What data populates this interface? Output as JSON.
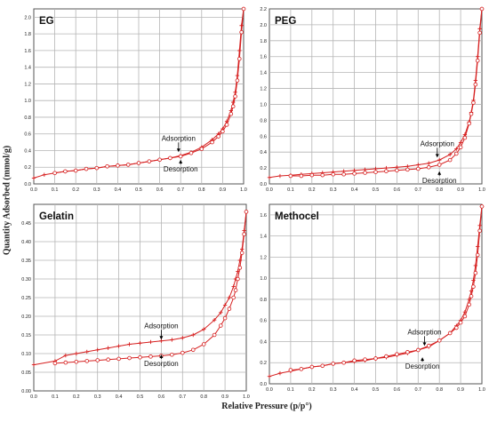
{
  "figure": {
    "ylabel": "Quantity Adsorbed (mmol/g)",
    "xlabel": "Relative Pressure (p/p°)"
  },
  "colors": {
    "line": "#d62020",
    "grid": "#b5b5b5",
    "text": "#222222"
  },
  "chart_data": [
    {
      "type": "line",
      "title": "EG",
      "xlim": [
        0,
        1.0
      ],
      "ylim": [
        0,
        2.1
      ],
      "xticks": [
        "0.0",
        "0.1",
        "0.2",
        "0.3",
        "0.4",
        "0.5",
        "0.6",
        "0.7",
        "0.8",
        "0.9",
        "1.0"
      ],
      "yticks": [
        "0.0",
        "0.2",
        "0.4",
        "0.6",
        "0.8",
        "1.0",
        "1.2",
        "1.4",
        "1.6",
        "1.8",
        "2.0"
      ],
      "annotations": [
        {
          "text": "Adsorption",
          "x": 0.69,
          "y": 0.37
        },
        {
          "text": "Desorption",
          "x": 0.7,
          "y": 0.3
        }
      ],
      "series": [
        {
          "name": "Adsorption",
          "x": [
            0.0,
            0.05,
            0.1,
            0.15,
            0.2,
            0.25,
            0.3,
            0.35,
            0.4,
            0.45,
            0.5,
            0.55,
            0.6,
            0.65,
            0.7,
            0.75,
            0.8,
            0.85,
            0.88,
            0.9,
            0.92,
            0.94,
            0.95,
            0.96,
            0.97,
            0.98,
            0.99,
            1.0
          ],
          "y": [
            0.07,
            0.11,
            0.13,
            0.15,
            0.16,
            0.18,
            0.19,
            0.21,
            0.22,
            0.23,
            0.25,
            0.27,
            0.29,
            0.31,
            0.34,
            0.38,
            0.44,
            0.53,
            0.6,
            0.66,
            0.75,
            0.88,
            0.98,
            1.1,
            1.3,
            1.6,
            1.9,
            2.1
          ]
        },
        {
          "name": "Desorption",
          "x": [
            1.0,
            0.99,
            0.98,
            0.97,
            0.96,
            0.95,
            0.94,
            0.92,
            0.9,
            0.88,
            0.85,
            0.8,
            0.75,
            0.7,
            0.65,
            0.6,
            0.55,
            0.5,
            0.45,
            0.4,
            0.35,
            0.3,
            0.25,
            0.2,
            0.15,
            0.1
          ],
          "y": [
            2.1,
            1.82,
            1.5,
            1.24,
            1.05,
            0.93,
            0.84,
            0.71,
            0.63,
            0.57,
            0.5,
            0.42,
            0.37,
            0.33,
            0.31,
            0.29,
            0.27,
            0.25,
            0.23,
            0.22,
            0.21,
            0.19,
            0.18,
            0.16,
            0.15,
            0.13
          ]
        }
      ]
    },
    {
      "type": "line",
      "title": "PEG",
      "xlim": [
        0,
        1.0
      ],
      "ylim": [
        0,
        2.2
      ],
      "xticks": [
        "0.0",
        "0.1",
        "0.2",
        "0.3",
        "0.4",
        "0.5",
        "0.6",
        "0.7",
        "0.8",
        "0.9",
        "1.0"
      ],
      "yticks": [
        "0.0",
        "0.2",
        "0.4",
        "0.6",
        "0.8",
        "1.0",
        "1.2",
        "1.4",
        "1.6",
        "1.8",
        "2.0",
        "2.2"
      ],
      "annotations": [
        {
          "text": "Adsorption",
          "x": 0.79,
          "y": 0.32
        },
        {
          "text": "Desorption",
          "x": 0.8,
          "y": 0.17
        }
      ],
      "series": [
        {
          "name": "Adsorption",
          "x": [
            0.0,
            0.05,
            0.1,
            0.15,
            0.2,
            0.25,
            0.3,
            0.35,
            0.4,
            0.45,
            0.5,
            0.55,
            0.6,
            0.65,
            0.7,
            0.75,
            0.8,
            0.85,
            0.88,
            0.9,
            0.92,
            0.94,
            0.95,
            0.96,
            0.97,
            0.98,
            0.99,
            1.0
          ],
          "y": [
            0.08,
            0.1,
            0.11,
            0.12,
            0.13,
            0.14,
            0.15,
            0.16,
            0.17,
            0.18,
            0.19,
            0.2,
            0.21,
            0.22,
            0.24,
            0.26,
            0.3,
            0.37,
            0.44,
            0.52,
            0.62,
            0.78,
            0.9,
            1.05,
            1.3,
            1.6,
            1.95,
            2.2
          ]
        },
        {
          "name": "Desorption",
          "x": [
            1.0,
            0.99,
            0.98,
            0.97,
            0.96,
            0.95,
            0.94,
            0.92,
            0.9,
            0.88,
            0.85,
            0.8,
            0.75,
            0.7,
            0.65,
            0.6,
            0.55,
            0.5,
            0.45,
            0.4,
            0.35,
            0.3,
            0.25,
            0.2,
            0.15,
            0.1
          ],
          "y": [
            2.2,
            1.9,
            1.55,
            1.25,
            1.02,
            0.88,
            0.76,
            0.58,
            0.46,
            0.38,
            0.3,
            0.24,
            0.21,
            0.19,
            0.18,
            0.17,
            0.16,
            0.15,
            0.14,
            0.13,
            0.12,
            0.12,
            0.11,
            0.11,
            0.1,
            0.1
          ]
        }
      ]
    },
    {
      "type": "line",
      "title": "Gelatin",
      "xlim": [
        0,
        1.0
      ],
      "ylim": [
        0,
        0.5
      ],
      "xticks": [
        "0.0",
        "0.1",
        "0.2",
        "0.3",
        "0.4",
        "0.5",
        "0.6",
        "0.7",
        "0.8",
        "0.9",
        "1.0"
      ],
      "yticks": [
        "0.00",
        "0.05",
        "0.10",
        "0.15",
        "0.20",
        "0.25",
        "0.30",
        "0.35",
        "0.40",
        "0.45"
      ],
      "annotations": [
        {
          "text": "Adsorption",
          "x": 0.6,
          "y": 0.135
        },
        {
          "text": "Desorption",
          "x": 0.6,
          "y": 0.1
        }
      ],
      "series": [
        {
          "name": "Adsorption",
          "x": [
            0.0,
            0.1,
            0.15,
            0.2,
            0.25,
            0.3,
            0.35,
            0.4,
            0.45,
            0.5,
            0.55,
            0.6,
            0.65,
            0.7,
            0.75,
            0.8,
            0.85,
            0.88,
            0.9,
            0.92,
            0.94,
            0.95,
            0.96,
            0.97,
            0.98,
            0.99,
            1.0
          ],
          "y": [
            0.07,
            0.08,
            0.095,
            0.1,
            0.105,
            0.11,
            0.115,
            0.12,
            0.125,
            0.128,
            0.131,
            0.134,
            0.137,
            0.142,
            0.15,
            0.165,
            0.19,
            0.21,
            0.23,
            0.25,
            0.28,
            0.3,
            0.32,
            0.35,
            0.38,
            0.43,
            0.48
          ]
        },
        {
          "name": "Desorption",
          "x": [
            1.0,
            0.99,
            0.98,
            0.97,
            0.96,
            0.95,
            0.94,
            0.92,
            0.9,
            0.88,
            0.85,
            0.8,
            0.75,
            0.7,
            0.65,
            0.6,
            0.55,
            0.5,
            0.45,
            0.4,
            0.35,
            0.3,
            0.25,
            0.2,
            0.15,
            0.1
          ],
          "y": [
            0.48,
            0.42,
            0.37,
            0.33,
            0.3,
            0.27,
            0.25,
            0.22,
            0.195,
            0.175,
            0.15,
            0.125,
            0.11,
            0.102,
            0.097,
            0.094,
            0.092,
            0.09,
            0.088,
            0.086,
            0.084,
            0.082,
            0.08,
            0.078,
            0.076,
            0.074
          ]
        }
      ]
    },
    {
      "type": "line",
      "title": "Methocel",
      "xlim": [
        0,
        1.0
      ],
      "ylim": [
        0,
        1.7
      ],
      "xticks": [
        "0.0",
        "0.1",
        "0.2",
        "0.3",
        "0.4",
        "0.5",
        "0.6",
        "0.7",
        "0.8",
        "0.9",
        "1.0"
      ],
      "yticks": [
        "0.0",
        "0.2",
        "0.4",
        "0.6",
        "0.8",
        "1.0",
        "1.2",
        "1.4",
        "1.6"
      ],
      "annotations": [
        {
          "text": "Adsorption",
          "x": 0.73,
          "y": 0.35
        },
        {
          "text": "Desorption",
          "x": 0.72,
          "y": 0.26
        }
      ],
      "series": [
        {
          "name": "Adsorption",
          "x": [
            0.0,
            0.05,
            0.1,
            0.15,
            0.2,
            0.25,
            0.3,
            0.35,
            0.4,
            0.45,
            0.5,
            0.55,
            0.6,
            0.65,
            0.7,
            0.75,
            0.8,
            0.85,
            0.88,
            0.9,
            0.92,
            0.94,
            0.95,
            0.96,
            0.97,
            0.98,
            0.99,
            1.0
          ],
          "y": [
            0.07,
            0.1,
            0.12,
            0.14,
            0.16,
            0.17,
            0.19,
            0.2,
            0.21,
            0.22,
            0.24,
            0.25,
            0.27,
            0.29,
            0.32,
            0.35,
            0.41,
            0.48,
            0.55,
            0.6,
            0.68,
            0.8,
            0.88,
            0.98,
            1.12,
            1.3,
            1.5,
            1.68
          ]
        },
        {
          "name": "Desorption",
          "x": [
            1.0,
            0.99,
            0.98,
            0.97,
            0.96,
            0.95,
            0.94,
            0.92,
            0.9,
            0.88,
            0.85,
            0.8,
            0.75,
            0.7,
            0.65,
            0.6,
            0.55,
            0.5,
            0.45,
            0.4,
            0.35,
            0.3,
            0.25,
            0.2,
            0.15,
            0.1
          ],
          "y": [
            1.68,
            1.45,
            1.22,
            1.05,
            0.92,
            0.83,
            0.75,
            0.64,
            0.58,
            0.53,
            0.48,
            0.41,
            0.36,
            0.32,
            0.3,
            0.28,
            0.26,
            0.24,
            0.23,
            0.22,
            0.2,
            0.19,
            0.17,
            0.16,
            0.14,
            0.13
          ]
        }
      ]
    }
  ]
}
